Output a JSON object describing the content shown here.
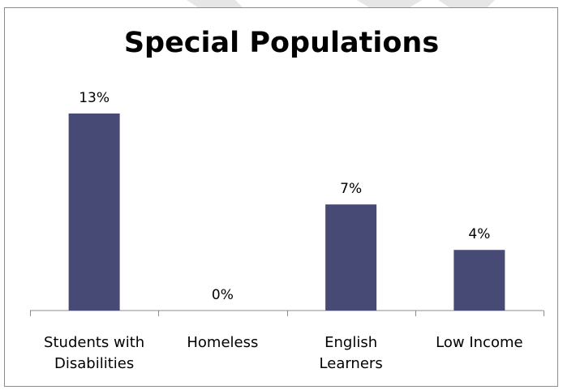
{
  "chart_data": {
    "type": "bar",
    "title": "Special Populations",
    "categories": [
      [
        "Students with",
        "Disabilities"
      ],
      [
        "Homeless"
      ],
      [
        "English",
        "Learners"
      ],
      [
        "Low Income"
      ]
    ],
    "values": [
      13,
      0,
      7,
      4
    ],
    "data_labels": [
      "13%",
      "0%",
      "7%",
      "4%"
    ],
    "ylim": [
      0,
      15
    ],
    "grid": false,
    "legend": "none",
    "bar_color": "#474A75",
    "axis_color": "#8c8c8c"
  }
}
